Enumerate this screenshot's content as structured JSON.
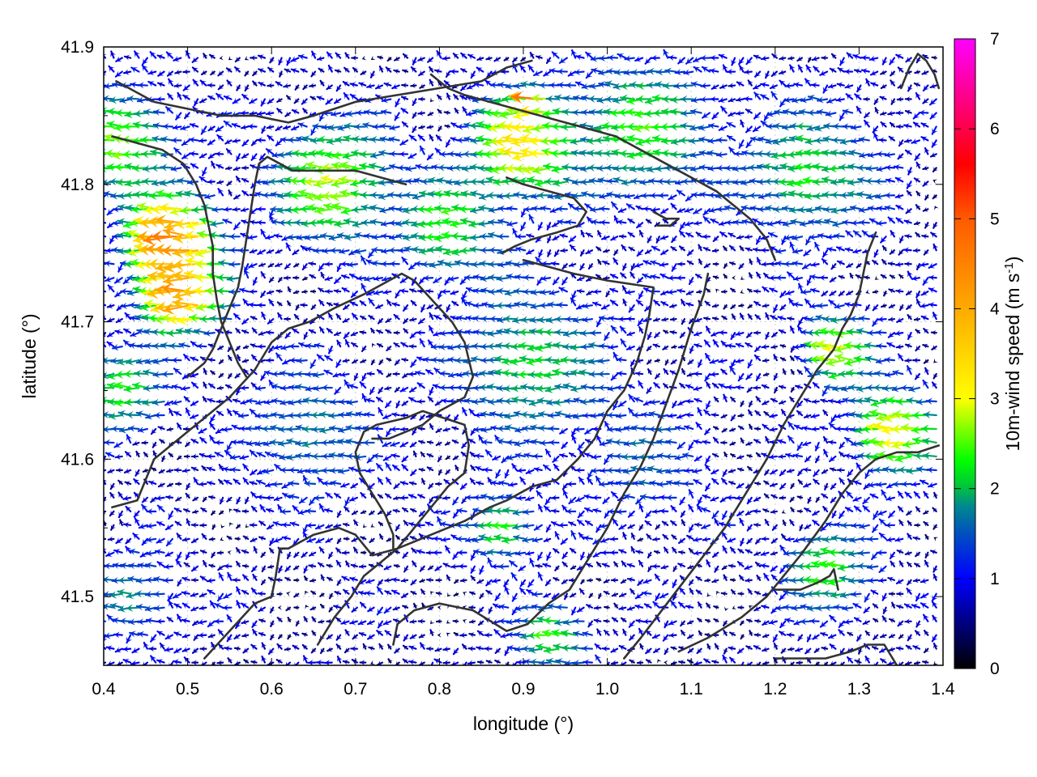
{
  "chart_data": {
    "type": "vector-field",
    "title": "",
    "xlabel": "longitude (°)",
    "ylabel": "latitude (°)",
    "xlim": [
      0.4,
      1.4
    ],
    "ylim": [
      41.45,
      41.9
    ],
    "x_ticks": [
      "0.4",
      "0.5",
      "0.6",
      "0.7",
      "0.8",
      "0.9",
      "1.0",
      "1.1",
      "1.2",
      "1.3",
      "1.4"
    ],
    "y_ticks": [
      "41.5",
      "41.6",
      "41.7",
      "41.8",
      "41.9"
    ],
    "grid": true,
    "colorbar": {
      "label": "10m-wind speed (m s",
      "label_sup": "-1",
      "label_end": ")",
      "range": [
        0,
        7
      ],
      "ticks": [
        "0",
        "1",
        "2",
        "3",
        "4",
        "5",
        "6",
        "7"
      ],
      "colors": [
        "#000000",
        "#0000ff",
        "#008c8c",
        "#00ff00",
        "#ffff00",
        "#ff8c00",
        "#ff0000",
        "#ff00ff"
      ]
    },
    "grid_spacing": [
      0.01,
      0.01
    ],
    "wind_direction": "predominantly westward (easterly flow)",
    "wind_regions": [
      {
        "lon": 0.49,
        "lat": 41.76,
        "speed": 4.5,
        "radius": 0.05
      },
      {
        "lon": 0.5,
        "lat": 41.72,
        "speed": 4.2,
        "radius": 0.045
      },
      {
        "lon": 0.43,
        "lat": 41.83,
        "speed": 2.6,
        "radius": 0.06
      },
      {
        "lon": 0.68,
        "lat": 41.8,
        "speed": 2.8,
        "radius": 0.07
      },
      {
        "lon": 0.82,
        "lat": 41.77,
        "speed": 2.4,
        "radius": 0.06
      },
      {
        "lon": 0.91,
        "lat": 41.83,
        "speed": 3.4,
        "radius": 0.06
      },
      {
        "lon": 0.92,
        "lat": 41.86,
        "speed": 5.2,
        "radius": 0.012
      },
      {
        "lon": 1.05,
        "lat": 41.84,
        "speed": 2.4,
        "radius": 0.08
      },
      {
        "lon": 1.25,
        "lat": 41.81,
        "speed": 2.2,
        "radius": 0.08
      },
      {
        "lon": 1.28,
        "lat": 41.68,
        "speed": 3.0,
        "radius": 0.04
      },
      {
        "lon": 1.35,
        "lat": 41.62,
        "speed": 3.1,
        "radius": 0.05
      },
      {
        "lon": 0.43,
        "lat": 41.65,
        "speed": 2.3,
        "radius": 0.05
      },
      {
        "lon": 0.92,
        "lat": 41.67,
        "speed": 2.1,
        "radius": 0.09
      },
      {
        "lon": 0.88,
        "lat": 41.55,
        "speed": 2.3,
        "radius": 0.04
      },
      {
        "lon": 0.94,
        "lat": 41.47,
        "speed": 2.4,
        "radius": 0.04
      },
      {
        "lon": 1.27,
        "lat": 41.52,
        "speed": 2.4,
        "radius": 0.05
      },
      {
        "lon": 1.05,
        "lat": 41.6,
        "speed": 1.6,
        "radius": 0.07
      },
      {
        "lon": 0.65,
        "lat": 41.62,
        "speed": 1.7,
        "radius": 0.08
      },
      {
        "lon": 0.44,
        "lat": 41.5,
        "speed": 1.8,
        "radius": 0.05
      }
    ],
    "contours": [
      [
        [
          0.52,
          41.455
        ],
        [
          0.55,
          41.475
        ],
        [
          0.58,
          41.495
        ],
        [
          0.6,
          41.5
        ],
        [
          0.605,
          41.515
        ],
        [
          0.61,
          41.535
        ],
        [
          0.62,
          41.535
        ],
        [
          0.65,
          41.545
        ],
        [
          0.68,
          41.55
        ],
        [
          0.7,
          41.545
        ],
        [
          0.72,
          41.53
        ],
        [
          0.75,
          41.535
        ],
        [
          0.77,
          41.55
        ],
        [
          0.79,
          41.565
        ],
        [
          0.81,
          41.58
        ],
        [
          0.83,
          41.59
        ],
        [
          0.835,
          41.61
        ],
        [
          0.83,
          41.625
        ],
        [
          0.78,
          41.635
        ],
        [
          0.76,
          41.63
        ],
        [
          0.725,
          41.625
        ],
        [
          0.71,
          41.62
        ],
        [
          0.7,
          41.605
        ],
        [
          0.705,
          41.59
        ],
        [
          0.72,
          41.575
        ],
        [
          0.735,
          41.56
        ],
        [
          0.745,
          41.545
        ],
        [
          0.745,
          41.535
        ]
      ],
      [
        [
          0.41,
          41.565
        ],
        [
          0.44,
          41.57
        ],
        [
          0.46,
          41.6
        ],
        [
          0.49,
          41.615
        ],
        [
          0.52,
          41.63
        ],
        [
          0.55,
          41.645
        ],
        [
          0.58,
          41.665
        ],
        [
          0.6,
          41.685
        ],
        [
          0.62,
          41.695
        ],
        [
          0.645,
          41.7
        ],
        [
          0.675,
          41.71
        ],
        [
          0.71,
          41.72
        ],
        [
          0.74,
          41.73
        ],
        [
          0.755,
          41.735
        ],
        [
          0.77,
          41.73
        ],
        [
          0.8,
          41.71
        ],
        [
          0.815,
          41.7
        ],
        [
          0.83,
          41.685
        ],
        [
          0.84,
          41.66
        ],
        [
          0.83,
          41.645
        ],
        [
          0.8,
          41.635
        ],
        [
          0.78,
          41.625
        ],
        [
          0.76,
          41.62
        ],
        [
          0.74,
          41.615
        ],
        [
          0.72,
          41.615
        ]
      ],
      [
        [
          0.655,
          41.465
        ],
        [
          0.675,
          41.485
        ],
        [
          0.695,
          41.5
        ],
        [
          0.71,
          41.515
        ],
        [
          0.73,
          41.525
        ],
        [
          0.75,
          41.535
        ],
        [
          0.79,
          41.545
        ],
        [
          0.83,
          41.555
        ],
        [
          0.86,
          41.565
        ],
        [
          0.88,
          41.57
        ],
        [
          0.91,
          41.58
        ],
        [
          0.94,
          41.585
        ],
        [
          0.965,
          41.6
        ],
        [
          0.985,
          41.615
        ],
        [
          1.0,
          41.635
        ],
        [
          1.02,
          41.65
        ],
        [
          1.035,
          41.67
        ],
        [
          1.045,
          41.69
        ],
        [
          1.05,
          41.705
        ],
        [
          1.055,
          41.725
        ],
        [
          1.0,
          41.73
        ],
        [
          0.96,
          41.735
        ],
        [
          0.93,
          41.74
        ],
        [
          0.9,
          41.745
        ]
      ],
      [
        [
          0.745,
          41.465
        ],
        [
          0.75,
          41.48
        ],
        [
          0.77,
          41.49
        ],
        [
          0.8,
          41.495
        ],
        [
          0.84,
          41.49
        ],
        [
          0.88,
          41.475
        ],
        [
          0.905,
          41.48
        ],
        [
          0.93,
          41.495
        ],
        [
          0.955,
          41.505
        ],
        [
          0.97,
          41.52
        ],
        [
          0.985,
          41.535
        ],
        [
          1.0,
          41.55
        ],
        [
          1.02,
          41.575
        ],
        [
          1.04,
          41.595
        ],
        [
          1.055,
          41.615
        ],
        [
          1.07,
          41.64
        ],
        [
          1.085,
          41.665
        ],
        [
          1.1,
          41.695
        ],
        [
          1.115,
          41.72
        ],
        [
          1.12,
          41.735
        ]
      ],
      [
        [
          1.02,
          41.455
        ],
        [
          1.04,
          41.47
        ],
        [
          1.065,
          41.49
        ],
        [
          1.09,
          41.51
        ],
        [
          1.115,
          41.53
        ],
        [
          1.14,
          41.55
        ],
        [
          1.165,
          41.575
        ],
        [
          1.19,
          41.6
        ],
        [
          1.21,
          41.625
        ],
        [
          1.23,
          41.645
        ],
        [
          1.25,
          41.665
        ],
        [
          1.27,
          41.68
        ],
        [
          1.28,
          41.695
        ],
        [
          1.29,
          41.705
        ],
        [
          1.3,
          41.72
        ],
        [
          1.305,
          41.735
        ],
        [
          1.31,
          41.75
        ],
        [
          1.32,
          41.765
        ]
      ],
      [
        [
          1.085,
          41.46
        ],
        [
          1.12,
          41.47
        ],
        [
          1.16,
          41.485
        ],
        [
          1.19,
          41.5
        ],
        [
          1.21,
          41.515
        ],
        [
          1.23,
          41.53
        ],
        [
          1.26,
          41.555
        ],
        [
          1.28,
          41.575
        ],
        [
          1.3,
          41.59
        ],
        [
          1.32,
          41.6
        ],
        [
          1.345,
          41.605
        ],
        [
          1.37,
          41.605
        ],
        [
          1.395,
          41.61
        ]
      ],
      [
        [
          1.2,
          41.455
        ],
        [
          1.23,
          41.455
        ],
        [
          1.26,
          41.455
        ],
        [
          1.29,
          41.46
        ],
        [
          1.31,
          41.465
        ],
        [
          1.33,
          41.465
        ],
        [
          1.345,
          41.45
        ]
      ],
      [
        [
          1.2,
          41.505
        ],
        [
          1.23,
          41.505
        ],
        [
          1.25,
          41.51
        ],
        [
          1.265,
          41.515
        ],
        [
          1.27,
          41.52
        ],
        [
          1.275,
          41.505
        ]
      ],
      [
        [
          0.415,
          41.875
        ],
        [
          0.43,
          41.87
        ],
        [
          0.46,
          41.86
        ],
        [
          0.5,
          41.855
        ],
        [
          0.54,
          41.85
        ],
        [
          0.58,
          41.85
        ],
        [
          0.62,
          41.845
        ],
        [
          0.65,
          41.85
        ],
        [
          0.7,
          41.86
        ],
        [
          0.75,
          41.865
        ],
        [
          0.8,
          41.87
        ],
        [
          0.85,
          41.875
        ],
        [
          0.88,
          41.885
        ],
        [
          0.91,
          41.89
        ]
      ],
      [
        [
          0.41,
          41.835
        ],
        [
          0.44,
          41.83
        ],
        [
          0.47,
          41.825
        ],
        [
          0.495,
          41.815
        ],
        [
          0.51,
          41.8
        ],
        [
          0.52,
          41.785
        ],
        [
          0.525,
          41.77
        ],
        [
          0.53,
          41.755
        ],
        [
          0.53,
          41.735
        ],
        [
          0.535,
          41.715
        ],
        [
          0.54,
          41.7
        ],
        [
          0.55,
          41.685
        ],
        [
          0.56,
          41.67
        ],
        [
          0.57,
          41.66
        ]
      ],
      [
        [
          0.5,
          41.66
        ],
        [
          0.52,
          41.67
        ],
        [
          0.53,
          41.68
        ],
        [
          0.54,
          41.695
        ],
        [
          0.55,
          41.71
        ],
        [
          0.56,
          41.725
        ],
        [
          0.565,
          41.74
        ],
        [
          0.57,
          41.76
        ],
        [
          0.575,
          41.78
        ],
        [
          0.58,
          41.8
        ],
        [
          0.585,
          41.815
        ],
        [
          0.595,
          41.82
        ],
        [
          0.61,
          41.815
        ],
        [
          0.625,
          41.81
        ],
        [
          0.645,
          41.81
        ],
        [
          0.67,
          41.81
        ],
        [
          0.7,
          41.81
        ],
        [
          0.73,
          41.805
        ],
        [
          0.76,
          41.8
        ]
      ],
      [
        [
          0.79,
          41.88
        ],
        [
          0.81,
          41.87
        ],
        [
          0.83,
          41.865
        ],
        [
          0.86,
          41.86
        ],
        [
          0.89,
          41.855
        ],
        [
          0.92,
          41.85
        ],
        [
          0.95,
          41.845
        ],
        [
          0.98,
          41.84
        ],
        [
          1.01,
          41.835
        ],
        [
          1.04,
          41.825
        ],
        [
          1.07,
          41.815
        ],
        [
          1.1,
          41.805
        ],
        [
          1.13,
          41.795
        ],
        [
          1.15,
          41.785
        ],
        [
          1.17,
          41.775
        ],
        [
          1.19,
          41.76
        ],
        [
          1.2,
          41.745
        ]
      ],
      [
        [
          0.88,
          41.805
        ],
        [
          0.9,
          41.8
        ],
        [
          0.93,
          41.795
        ],
        [
          0.96,
          41.79
        ],
        [
          0.975,
          41.78
        ],
        [
          0.965,
          41.77
        ],
        [
          0.94,
          41.765
        ],
        [
          0.91,
          41.76
        ],
        [
          0.89,
          41.755
        ],
        [
          0.875,
          41.75
        ]
      ],
      [
        [
          1.055,
          41.78
        ],
        [
          1.07,
          41.775
        ],
        [
          1.085,
          41.775
        ],
        [
          1.075,
          41.77
        ],
        [
          1.06,
          41.77
        ]
      ],
      [
        [
          1.35,
          41.87
        ],
        [
          1.36,
          41.885
        ],
        [
          1.37,
          41.895
        ],
        [
          1.38,
          41.89
        ],
        [
          1.39,
          41.88
        ],
        [
          1.395,
          41.87
        ]
      ]
    ]
  }
}
